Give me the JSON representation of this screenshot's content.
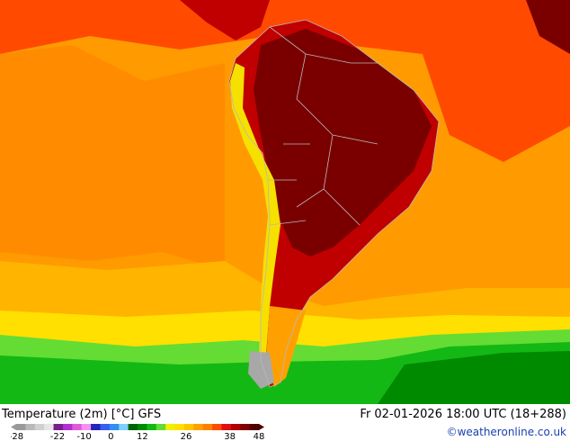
{
  "title": "Temperature (2m) [°C] GFS",
  "run_time": "Fr 02-01-2026 18:00 UTC (18+288)",
  "credit": "©weatheronline.co.uk",
  "legend": {
    "colors": [
      "#9a9a9a",
      "#b8b8b8",
      "#d0d0d0",
      "#e6e6e6",
      "#7a1e8c",
      "#b12fd0",
      "#e05ad8",
      "#f590f0",
      "#2424b8",
      "#3a5cf0",
      "#2f8ff5",
      "#7fd0ff",
      "#006400",
      "#008a00",
      "#14b814",
      "#64dc34",
      "#f0f000",
      "#ffe000",
      "#ffc400",
      "#ffa000",
      "#ff8000",
      "#ff4b00",
      "#e01010",
      "#b00000",
      "#800000",
      "#500000"
    ],
    "tick_labels": [
      "-28",
      "-22",
      "-10",
      "0",
      "12",
      "26",
      "38",
      "48"
    ]
  },
  "map_colors": {
    "ocean_south": "#00b400",
    "ocean_mid": "#ffd000",
    "ocean_warm": "#ff8c00",
    "ocean_hot": "#ff4a00",
    "land_hot": "#c00000",
    "land_hottest": "#7a0000",
    "andes": "#f5e000",
    "ice": "#a8a8a8",
    "border": "#b8b8b8"
  }
}
